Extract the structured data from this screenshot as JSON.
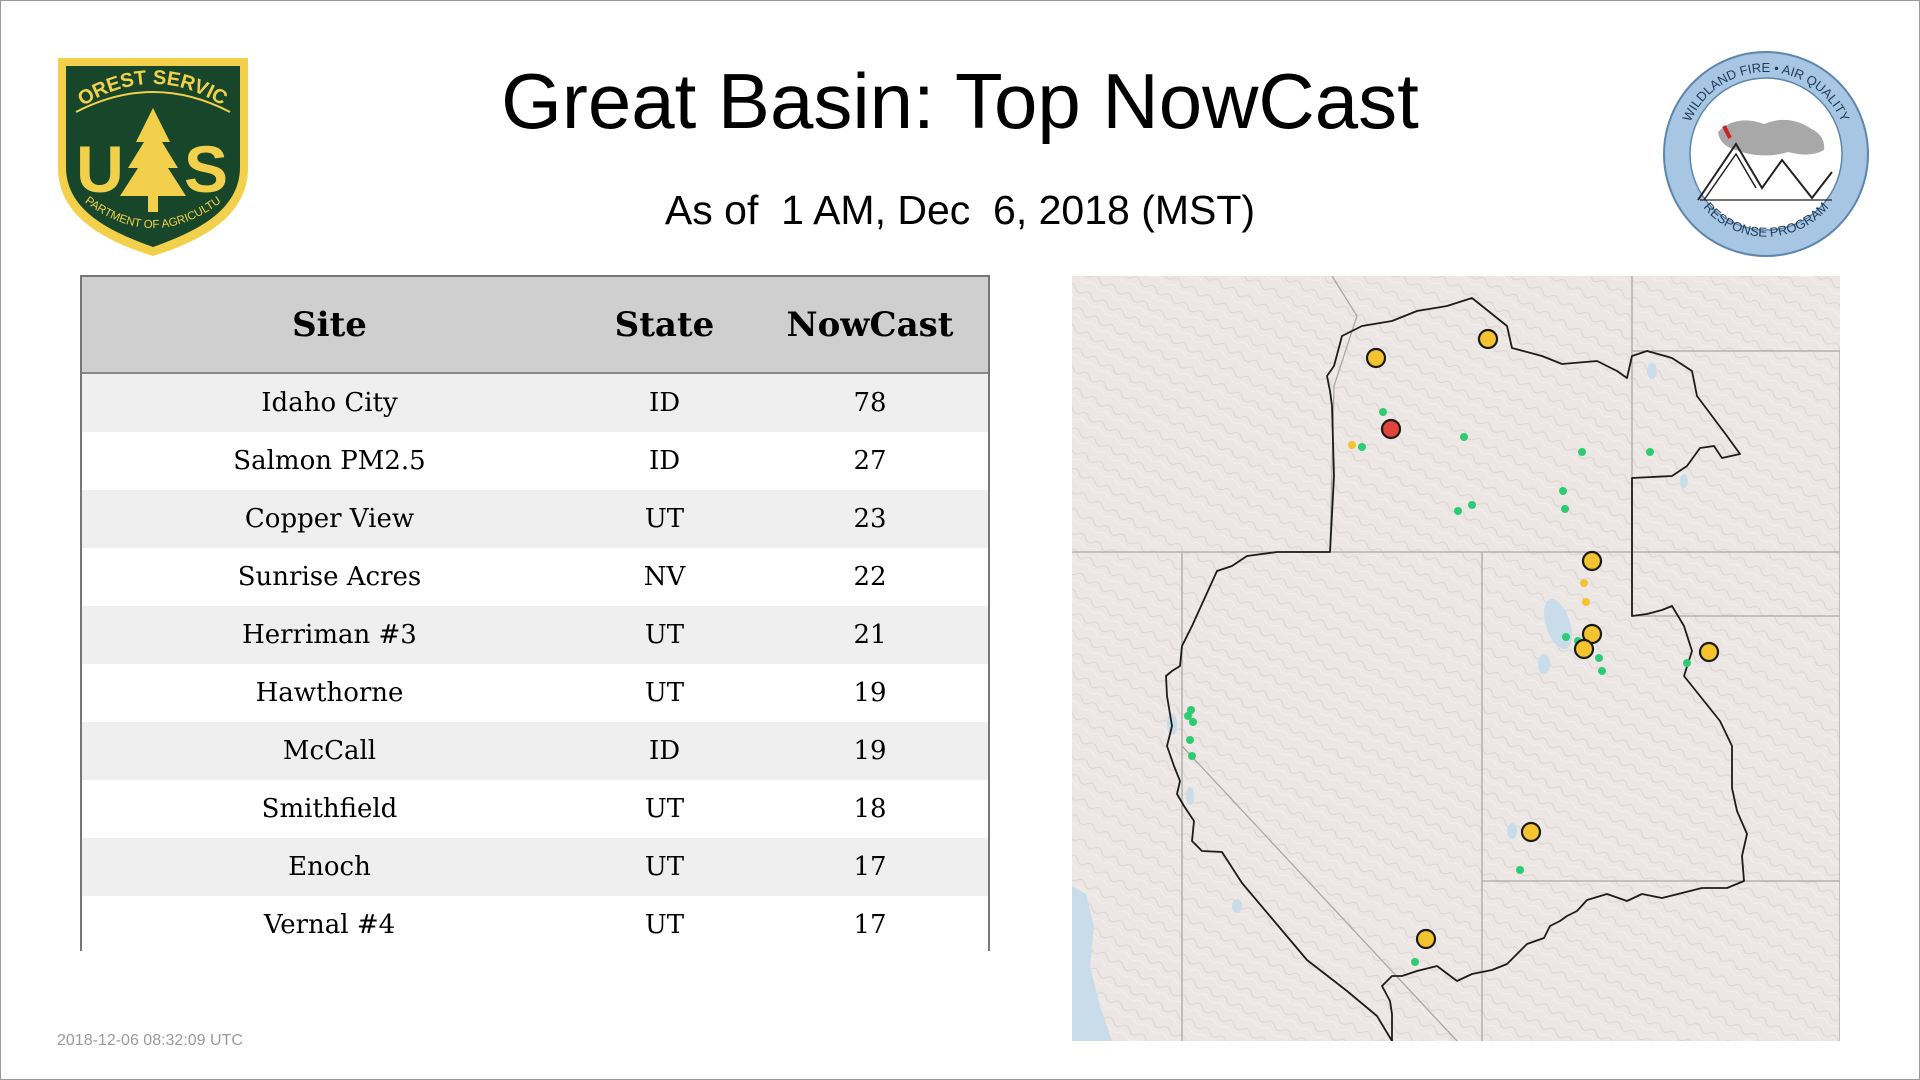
{
  "header": {
    "title": "Great Basin: Top NowCast",
    "subtitle": "As of  1 AM, Dec  6, 2018 (MST)"
  },
  "logos": {
    "left": {
      "top_text": "FOREST SERVICE",
      "monogram_left": "U",
      "monogram_right": "S",
      "bottom_text": "DEPARTMENT OF AGRICULTURE"
    },
    "right": {
      "top_text": "WILDLAND FIRE • AIR QUALITY",
      "bottom_text": "RESPONSE PROGRAM"
    }
  },
  "table": {
    "headers": [
      "Site",
      "State",
      "NowCast"
    ],
    "rows": [
      {
        "site": "Idaho City",
        "state": "ID",
        "nowcast": "78"
      },
      {
        "site": "Salmon PM2.5",
        "state": "ID",
        "nowcast": "27"
      },
      {
        "site": "Copper View",
        "state": "UT",
        "nowcast": "23"
      },
      {
        "site": "Sunrise Acres",
        "state": "NV",
        "nowcast": "22"
      },
      {
        "site": "Herriman #3",
        "state": "UT",
        "nowcast": "21"
      },
      {
        "site": "Hawthorne",
        "state": "UT",
        "nowcast": "19"
      },
      {
        "site": "McCall",
        "state": "ID",
        "nowcast": "19"
      },
      {
        "site": "Smithfield",
        "state": "UT",
        "nowcast": "18"
      },
      {
        "site": "Enoch",
        "state": "UT",
        "nowcast": "17"
      },
      {
        "site": "Vernal #4",
        "state": "UT",
        "nowcast": "17"
      }
    ]
  },
  "timestamp": "2018-12-06 08:32:09 UTC",
  "map": {
    "colors": {
      "land": "#ece6e4",
      "water": "#c9dcea",
      "region_outline": "#222222",
      "state_border": "#a8a8a8",
      "marker_red": "#e0443a",
      "marker_orange": "#f4c430",
      "marker_green": "#2ecc71"
    },
    "marker_categories": [
      "green",
      "orange",
      "red"
    ]
  }
}
